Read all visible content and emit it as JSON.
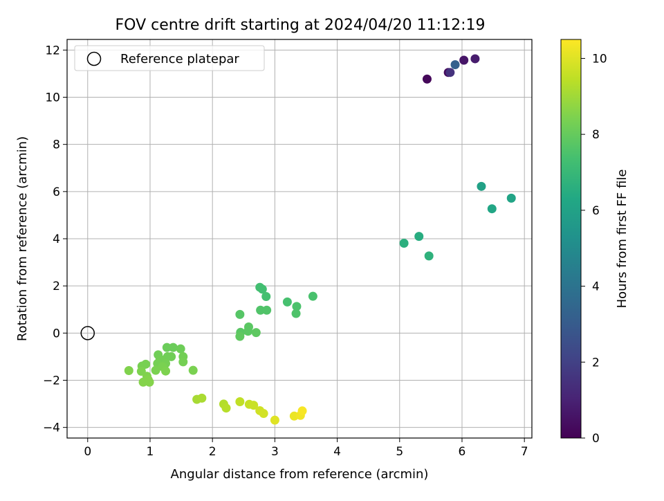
{
  "chart_data": {
    "type": "scatter",
    "title": "FOV centre drift starting at 2024/04/20 11:12:19",
    "xlabel": "Angular distance from reference (arcmin)",
    "ylabel": "Rotation from reference (arcmin)",
    "xlim": [
      -0.33,
      7.12
    ],
    "ylim": [
      -4.45,
      12.45
    ],
    "xticks": [
      0,
      1,
      2,
      3,
      4,
      5,
      6,
      7
    ],
    "yticks": [
      -4,
      -2,
      0,
      2,
      4,
      6,
      8,
      10,
      12
    ],
    "grid": true,
    "legend": {
      "position": "top-left",
      "entries": [
        "Reference platepar"
      ]
    },
    "reference_point": {
      "x": 0,
      "y": 0,
      "label": "Reference platepar"
    },
    "colorbar": {
      "label": "Hours from first FF file",
      "colormap": "viridis",
      "range": [
        0,
        10.5
      ],
      "ticks": [
        0,
        2,
        4,
        6,
        8,
        10
      ]
    },
    "points": [
      {
        "x": 5.44,
        "y": 10.77,
        "c": 0.2
      },
      {
        "x": 5.78,
        "y": 11.05,
        "c": 0.3
      },
      {
        "x": 6.03,
        "y": 11.57,
        "c": 0.6
      },
      {
        "x": 6.21,
        "y": 11.63,
        "c": 0.8
      },
      {
        "x": 5.81,
        "y": 11.05,
        "c": 1.5
      },
      {
        "x": 5.89,
        "y": 11.38,
        "c": 3.2
      },
      {
        "x": 6.31,
        "y": 6.22,
        "c": 6.0
      },
      {
        "x": 6.79,
        "y": 5.72,
        "c": 6.1
      },
      {
        "x": 6.48,
        "y": 5.27,
        "c": 6.2
      },
      {
        "x": 5.31,
        "y": 4.1,
        "c": 6.5
      },
      {
        "x": 5.07,
        "y": 3.81,
        "c": 6.6
      },
      {
        "x": 5.47,
        "y": 3.27,
        "c": 6.7
      },
      {
        "x": 2.76,
        "y": 1.94,
        "c": 7.3
      },
      {
        "x": 2.8,
        "y": 1.86,
        "c": 7.3
      },
      {
        "x": 2.86,
        "y": 1.55,
        "c": 7.35
      },
      {
        "x": 3.2,
        "y": 1.32,
        "c": 7.4
      },
      {
        "x": 3.61,
        "y": 1.56,
        "c": 7.45
      },
      {
        "x": 3.35,
        "y": 1.13,
        "c": 7.5
      },
      {
        "x": 3.34,
        "y": 0.83,
        "c": 7.55
      },
      {
        "x": 2.77,
        "y": 0.97,
        "c": 7.6
      },
      {
        "x": 2.87,
        "y": 0.97,
        "c": 7.6
      },
      {
        "x": 2.44,
        "y": 0.79,
        "c": 7.7
      },
      {
        "x": 2.45,
        "y": 0.03,
        "c": 7.75
      },
      {
        "x": 2.58,
        "y": 0.26,
        "c": 7.8
      },
      {
        "x": 2.57,
        "y": 0.08,
        "c": 7.8
      },
      {
        "x": 2.7,
        "y": 0.02,
        "c": 7.85
      },
      {
        "x": 2.44,
        "y": -0.14,
        "c": 7.9
      },
      {
        "x": 1.27,
        "y": -0.61,
        "c": 8.1
      },
      {
        "x": 1.37,
        "y": -0.61,
        "c": 8.1
      },
      {
        "x": 1.49,
        "y": -0.67,
        "c": 8.15
      },
      {
        "x": 1.13,
        "y": -0.92,
        "c": 8.2
      },
      {
        "x": 1.28,
        "y": -1.0,
        "c": 8.2
      },
      {
        "x": 1.34,
        "y": -1.0,
        "c": 8.2
      },
      {
        "x": 1.53,
        "y": -1.0,
        "c": 8.25
      },
      {
        "x": 1.16,
        "y": -1.1,
        "c": 8.25
      },
      {
        "x": 1.53,
        "y": -1.22,
        "c": 8.3
      },
      {
        "x": 1.12,
        "y": -1.29,
        "c": 8.3
      },
      {
        "x": 1.25,
        "y": -1.29,
        "c": 8.3
      },
      {
        "x": 0.93,
        "y": -1.32,
        "c": 8.35
      },
      {
        "x": 0.87,
        "y": -1.4,
        "c": 8.35
      },
      {
        "x": 1.2,
        "y": -1.42,
        "c": 8.4
      },
      {
        "x": 1.09,
        "y": -1.58,
        "c": 8.4
      },
      {
        "x": 1.69,
        "y": -1.58,
        "c": 8.4
      },
      {
        "x": 1.25,
        "y": -1.61,
        "c": 8.45
      },
      {
        "x": 0.86,
        "y": -1.62,
        "c": 8.45
      },
      {
        "x": 0.66,
        "y": -1.59,
        "c": 8.5
      },
      {
        "x": 0.95,
        "y": -1.83,
        "c": 8.5
      },
      {
        "x": 0.97,
        "y": -1.98,
        "c": 8.55
      },
      {
        "x": 0.89,
        "y": -2.08,
        "c": 8.55
      },
      {
        "x": 0.99,
        "y": -2.08,
        "c": 8.55
      },
      {
        "x": 1.75,
        "y": -2.81,
        "c": 9.1
      },
      {
        "x": 1.83,
        "y": -2.76,
        "c": 9.15
      },
      {
        "x": 2.18,
        "y": -3.01,
        "c": 9.3
      },
      {
        "x": 2.22,
        "y": -3.18,
        "c": 9.35
      },
      {
        "x": 2.44,
        "y": -2.91,
        "c": 9.5
      },
      {
        "x": 2.59,
        "y": -3.02,
        "c": 9.6
      },
      {
        "x": 2.66,
        "y": -3.06,
        "c": 9.65
      },
      {
        "x": 2.76,
        "y": -3.29,
        "c": 9.75
      },
      {
        "x": 2.82,
        "y": -3.41,
        "c": 9.8
      },
      {
        "x": 3.0,
        "y": -3.69,
        "c": 10.0
      },
      {
        "x": 3.31,
        "y": -3.52,
        "c": 10.2
      },
      {
        "x": 3.41,
        "y": -3.49,
        "c": 10.3
      },
      {
        "x": 3.44,
        "y": -3.3,
        "c": 10.4
      }
    ]
  }
}
